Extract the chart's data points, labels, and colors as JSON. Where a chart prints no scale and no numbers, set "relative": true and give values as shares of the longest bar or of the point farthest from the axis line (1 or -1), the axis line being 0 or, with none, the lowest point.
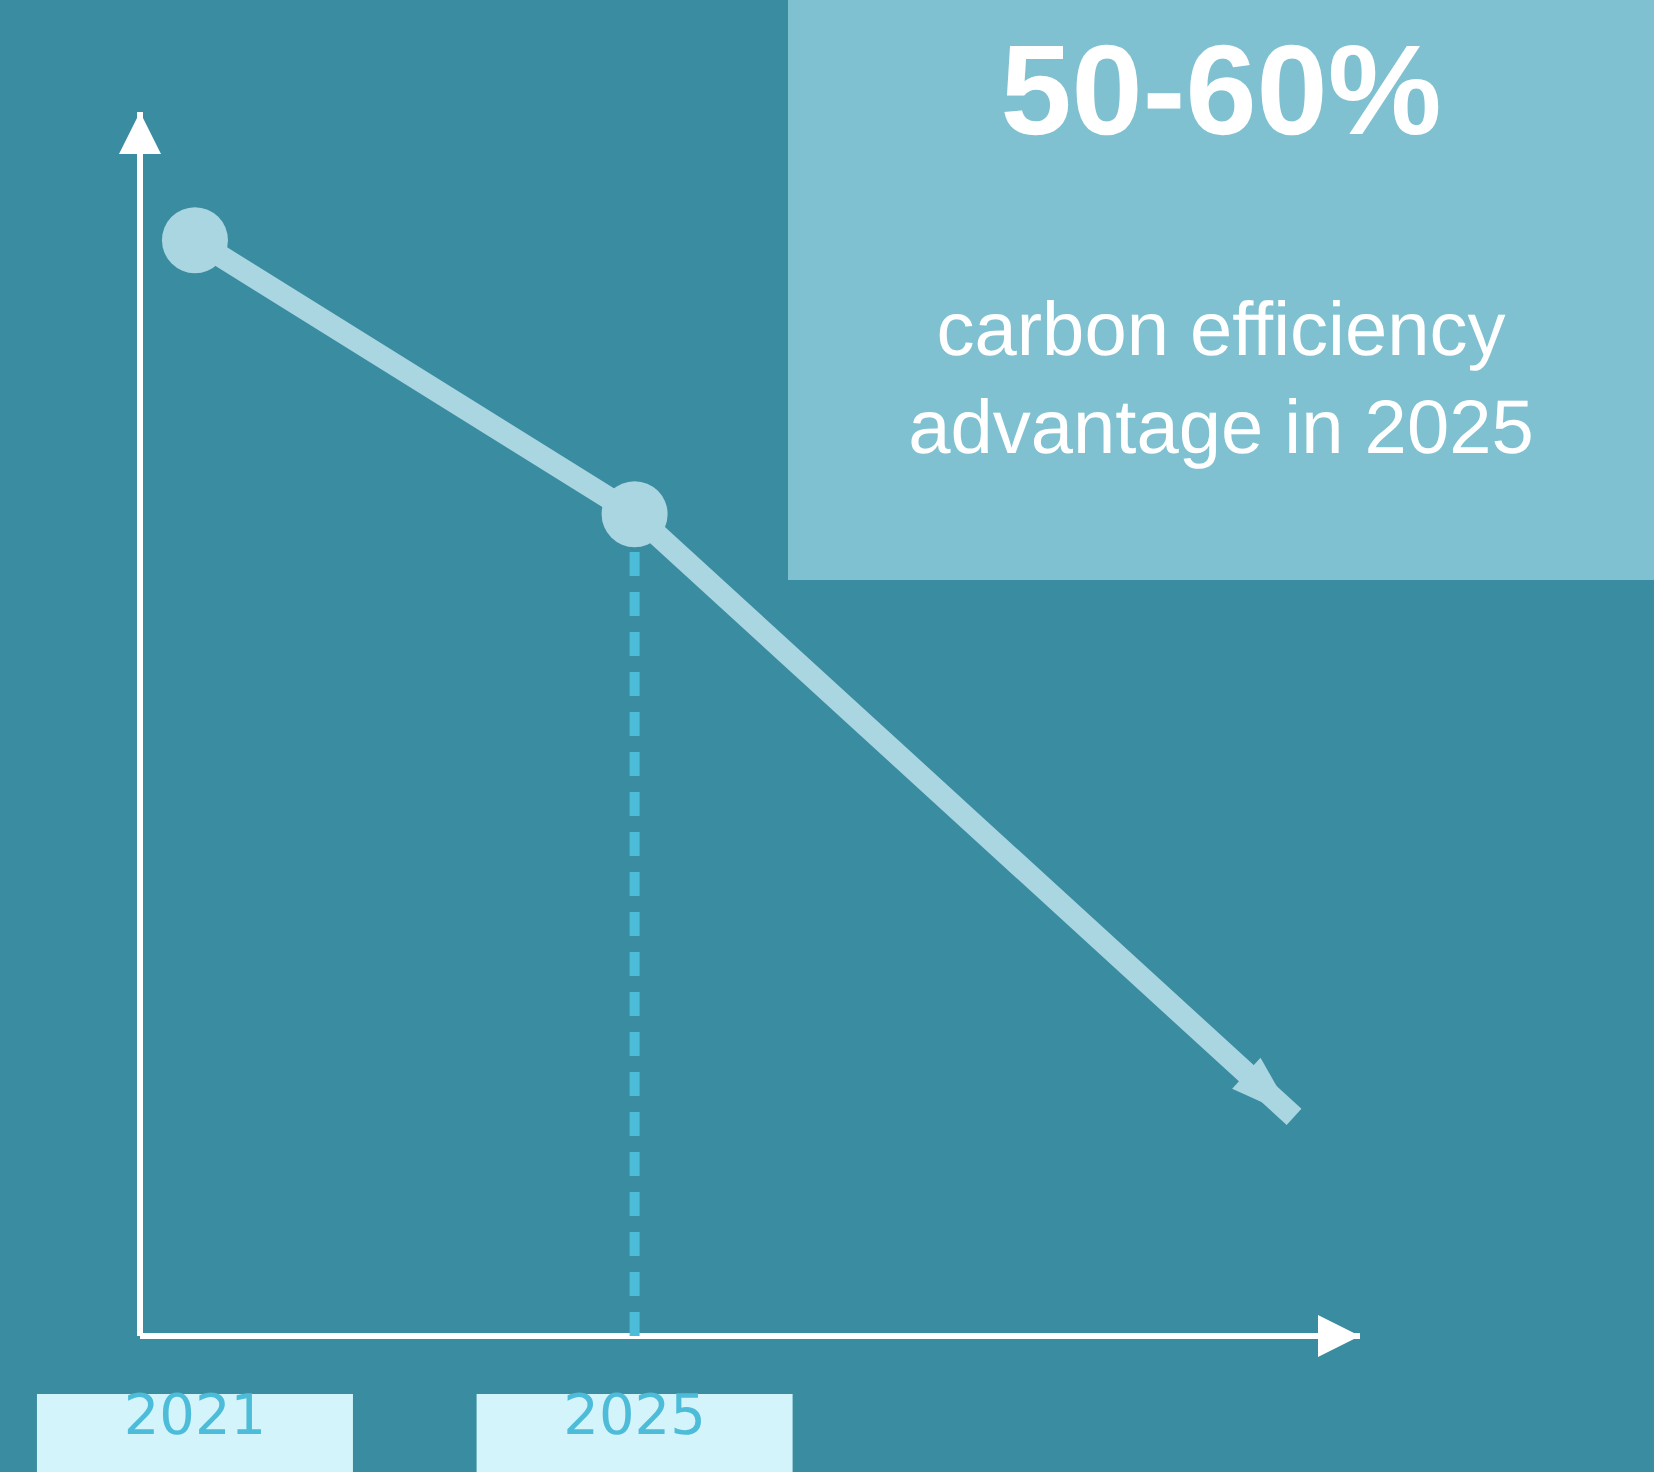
{
  "chart_data": {
    "type": "line",
    "relative": true,
    "x": [
      2021,
      2025,
      2031
    ],
    "xlim": [
      2020.5,
      2031.6
    ],
    "xticks": [
      2021,
      2025
    ],
    "series": [
      {
        "color": "#a9d6e1",
        "values": [
          1,
          0.75,
          0.2
        ]
      }
    ],
    "marker": "circle",
    "line_style": "solid",
    "grid": false,
    "tick_labels": "x",
    "ref_lines": [
      {
        "axis": "x",
        "value": 2025,
        "color": "#4dbcd9",
        "line_style": "dashed"
      }
    ],
    "annotations": [
      "50-60%",
      "carbon efficiency advantage in 2025"
    ]
  }
}
